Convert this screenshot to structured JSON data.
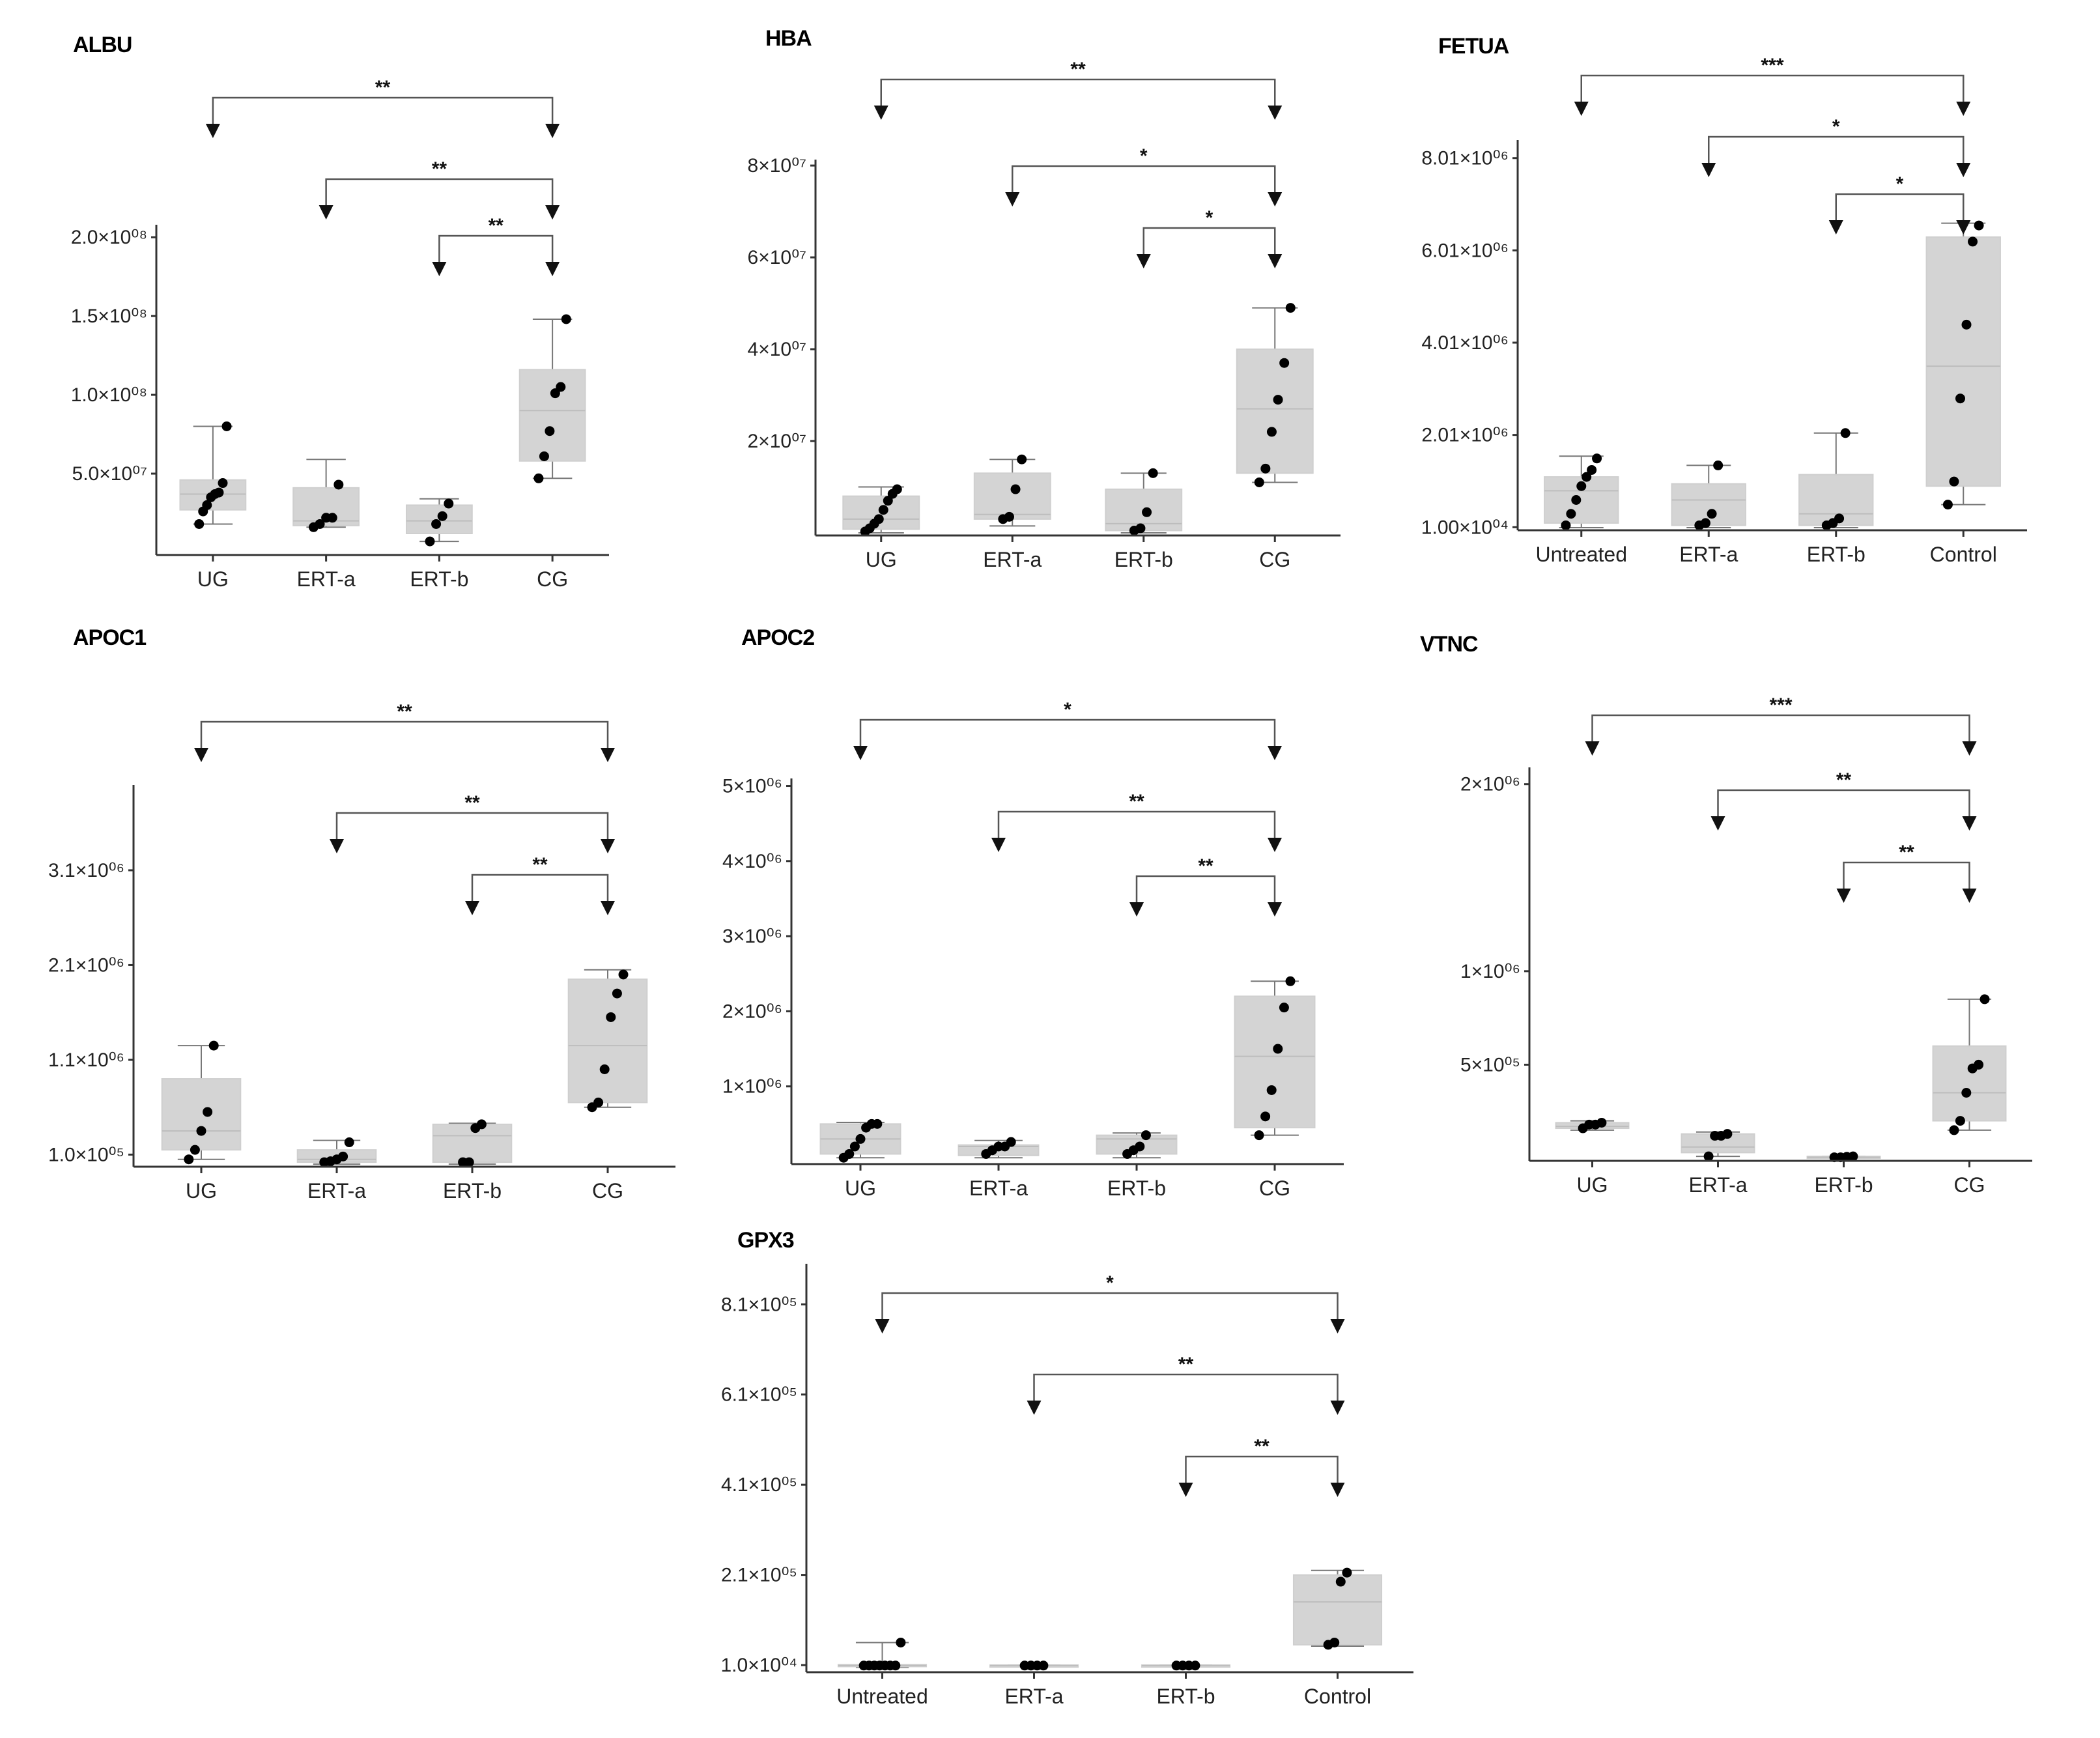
{
  "chart_data": [
    {
      "type": "box",
      "title": "ALBU",
      "categories": [
        "UG",
        "ERT-a",
        "ERT-b",
        "CG"
      ],
      "ylim": [
        0,
        210000000.0
      ],
      "yticks": [
        {
          "value": 50000000.0,
          "label": "5.0×10⁰⁷"
        },
        {
          "value": 100000000.0,
          "label": "1.0×10⁰⁸"
        },
        {
          "value": 150000000.0,
          "label": "1.5×10⁰⁸"
        },
        {
          "value": 200000000.0,
          "label": "2.0×10⁰⁸"
        }
      ],
      "boxes": [
        {
          "whisker_low": 18000000.0,
          "q1": 27000000.0,
          "median": 37000000.0,
          "q3": 46000000.0,
          "whisker_high": 80000000.0,
          "points": [
            18000000.0,
            26000000.0,
            30000000.0,
            35000000.0,
            37000000.0,
            38000000.0,
            44000000.0,
            80000000.0
          ]
        },
        {
          "whisker_low": 16000000.0,
          "q1": 17000000.0,
          "median": 20000000.0,
          "q3": 41000000.0,
          "whisker_high": 59000000.0,
          "points": [
            16000000.0,
            18000000.0,
            22000000.0,
            22000000.0,
            43000000.0
          ]
        },
        {
          "whisker_low": 7000000.0,
          "q1": 12000000.0,
          "median": 20000000.0,
          "q3": 30000000.0,
          "whisker_high": 34000000.0,
          "points": [
            7000000.0,
            18000000.0,
            23000000.0,
            31000000.0
          ]
        },
        {
          "whisker_low": 47000000.0,
          "q1": 58000000.0,
          "median": 90000000.0,
          "q3": 116000000.0,
          "whisker_high": 148000000.0,
          "points": [
            47000000.0,
            61000000.0,
            77000000.0,
            101000000.0,
            105000000.0,
            148000000.0
          ]
        }
      ],
      "comparisons": [
        {
          "from": 0,
          "to": 3,
          "label": "**"
        },
        {
          "from": 1,
          "to": 3,
          "label": "**"
        },
        {
          "from": 2,
          "to": 3,
          "label": "**"
        }
      ]
    },
    {
      "type": "box",
      "title": "HBA",
      "categories": [
        "UG",
        "ERT-a",
        "ERT-b",
        "CG"
      ],
      "ylim": [
        0,
        82000000.0
      ],
      "yticks": [
        {
          "value": 20000000.0,
          "label": "2×10⁰⁷"
        },
        {
          "value": 40000000.0,
          "label": "4×10⁰⁷"
        },
        {
          "value": 60000000.0,
          "label": "6×10⁰⁷"
        },
        {
          "value": 80000000.0,
          "label": "8×10⁰⁷"
        }
      ],
      "boxes": [
        {
          "whisker_low": 0,
          "q1": 800000.0,
          "median": 3000000.0,
          "q3": 8000000.0,
          "whisker_high": 10000000.0,
          "points": [
            300000.0,
            1000000.0,
            2000000.0,
            3000000.0,
            5000000.0,
            7000000.0,
            8500000.0,
            9500000.0
          ]
        },
        {
          "whisker_low": 1500000.0,
          "q1": 3000000.0,
          "median": 4000000.0,
          "q3": 13000000.0,
          "whisker_high": 16000000.0,
          "points": [
            3000000.0,
            3500000.0,
            9500000.0,
            16000000.0
          ]
        },
        {
          "whisker_low": 0,
          "q1": 500000.0,
          "median": 2000000.0,
          "q3": 9500000.0,
          "whisker_high": 13000000.0,
          "points": [
            500000.0,
            1000000.0,
            4500000.0,
            13000000.0
          ]
        },
        {
          "whisker_low": 11000000.0,
          "q1": 13000000.0,
          "median": 27000000.0,
          "q3": 40000000.0,
          "whisker_high": 49000000.0,
          "points": [
            11000000.0,
            14000000.0,
            22000000.0,
            29000000.0,
            37000000.0,
            49000000.0
          ]
        }
      ],
      "comparisons": [
        {
          "from": 0,
          "to": 3,
          "label": "**"
        },
        {
          "from": 1,
          "to": 3,
          "label": "*"
        },
        {
          "from": 2,
          "to": 3,
          "label": "*"
        }
      ]
    },
    {
      "type": "box",
      "title": "FETUA",
      "categories": [
        "Untreated",
        "ERT-a",
        "ERT-b",
        "Control"
      ],
      "ylim": [
        0,
        8500000.0
      ],
      "yticks": [
        {
          "value": 10000.0,
          "label": "1.00×10⁰⁴"
        },
        {
          "value": 2010000.0,
          "label": "2.01×10⁰⁶"
        },
        {
          "value": 4010000.0,
          "label": "4.01×10⁰⁶"
        },
        {
          "value": 6010000.0,
          "label": "6.01×10⁰⁶"
        },
        {
          "value": 8010000.0,
          "label": "8.01×10⁰⁶"
        }
      ],
      "boxes": [
        {
          "whisker_low": 0,
          "q1": 100000.0,
          "median": 800000.0,
          "q3": 1100000.0,
          "whisker_high": 1550000.0,
          "points": [
            50000.0,
            300000.0,
            600000.0,
            900000.0,
            1100000.0,
            1250000.0,
            1500000.0
          ]
        },
        {
          "whisker_low": 0,
          "q1": 50000.0,
          "median": 600000.0,
          "q3": 950000.0,
          "whisker_high": 1350000.0,
          "points": [
            50000.0,
            100000.0,
            300000.0,
            1350000.0
          ]
        },
        {
          "whisker_low": 0,
          "q1": 50000.0,
          "median": 300000.0,
          "q3": 1150000.0,
          "whisker_high": 2050000.0,
          "points": [
            50000.0,
            100000.0,
            200000.0,
            2050000.0
          ]
        },
        {
          "whisker_low": 500000.0,
          "q1": 900000.0,
          "median": 3500000.0,
          "q3": 6300000.0,
          "whisker_high": 6600000.0,
          "points": [
            500000.0,
            1000000.0,
            2800000.0,
            4400000.0,
            6200000.0,
            6550000.0
          ]
        }
      ],
      "comparisons": [
        {
          "from": 0,
          "to": 3,
          "label": "***"
        },
        {
          "from": 1,
          "to": 3,
          "label": "*"
        },
        {
          "from": 2,
          "to": 3,
          "label": "*"
        }
      ]
    },
    {
      "type": "box",
      "title": "APOC1",
      "categories": [
        "UG",
        "ERT-a",
        "ERT-b",
        "CG"
      ],
      "ylim": [
        0,
        4000000.0
      ],
      "yticks": [
        {
          "value": 100000.0,
          "label": "1.0×10⁰⁵"
        },
        {
          "value": 1100000.0,
          "label": "1.1×10⁰⁶"
        },
        {
          "value": 2100000.0,
          "label": "2.1×10⁰⁶"
        },
        {
          "value": 3100000.0,
          "label": "3.1×10⁰⁶"
        }
      ],
      "boxes": [
        {
          "whisker_low": 50000.0,
          "q1": 150000.0,
          "median": 350000.0,
          "q3": 900000.0,
          "whisker_high": 1250000.0,
          "points": [
            50000.0,
            150000.0,
            350000.0,
            550000.0,
            1250000.0
          ]
        },
        {
          "whisker_low": 0,
          "q1": 20000.0,
          "median": 50000.0,
          "q3": 150000.0,
          "whisker_high": 250000.0,
          "points": [
            20000.0,
            30000.0,
            50000.0,
            80000.0,
            230000.0
          ]
        },
        {
          "whisker_low": 0,
          "q1": 20000.0,
          "median": 300000.0,
          "q3": 420000.0,
          "whisker_high": 430000.0,
          "points": [
            20000.0,
            20000.0,
            380000.0,
            420000.0
          ]
        },
        {
          "whisker_low": 600000.0,
          "q1": 650000.0,
          "median": 1250000.0,
          "q3": 1950000.0,
          "whisker_high": 2050000.0,
          "points": [
            600000.0,
            650000.0,
            1000000.0,
            1550000.0,
            1800000.0,
            2000000.0
          ]
        }
      ],
      "comparisons": [
        {
          "from": 0,
          "to": 3,
          "label": "**"
        },
        {
          "from": 1,
          "to": 3,
          "label": "**"
        },
        {
          "from": 2,
          "to": 3,
          "label": "**"
        }
      ]
    },
    {
      "type": "box",
      "title": "APOC2",
      "categories": [
        "UG",
        "ERT-a",
        "ERT-b",
        "CG"
      ],
      "ylim": [
        0,
        5100000.0
      ],
      "yticks": [
        {
          "value": 1000000.0,
          "label": "1×10⁰⁶"
        },
        {
          "value": 2000000.0,
          "label": "2×10⁰⁶"
        },
        {
          "value": 3000000.0,
          "label": "3×10⁰⁶"
        },
        {
          "value": 4000000.0,
          "label": "4×10⁰⁶"
        },
        {
          "value": 5000000.0,
          "label": "5×10⁰⁶"
        }
      ],
      "boxes": [
        {
          "whisker_low": 50000.0,
          "q1": 100000.0,
          "median": 300000.0,
          "q3": 500000.0,
          "whisker_high": 520000.0,
          "points": [
            50000.0,
            100000.0,
            200000.0,
            300000.0,
            450000.0,
            500000.0,
            500000.0
          ]
        },
        {
          "whisker_low": 50000.0,
          "q1": 80000.0,
          "median": 200000.0,
          "q3": 220000.0,
          "whisker_high": 280000.0,
          "points": [
            100000.0,
            150000.0,
            200000.0,
            200000.0,
            260000.0
          ]
        },
        {
          "whisker_low": 50000.0,
          "q1": 100000.0,
          "median": 300000.0,
          "q3": 350000.0,
          "whisker_high": 380000.0,
          "points": [
            100000.0,
            150000.0,
            200000.0,
            350000.0
          ]
        },
        {
          "whisker_low": 350000.0,
          "q1": 450000.0,
          "median": 1400000.0,
          "q3": 2200000.0,
          "whisker_high": 2400000.0,
          "points": [
            350000.0,
            600000.0,
            950000.0,
            1500000.0,
            2050000.0,
            2400000.0
          ]
        }
      ],
      "comparisons": [
        {
          "from": 0,
          "to": 3,
          "label": "*"
        },
        {
          "from": 1,
          "to": 3,
          "label": "**"
        },
        {
          "from": 2,
          "to": 3,
          "label": "**"
        }
      ]
    },
    {
      "type": "box",
      "title": "VTNC",
      "categories": [
        "UG",
        "ERT-a",
        "ERT-b",
        "CG"
      ],
      "ylim": [
        0,
        2100000.0
      ],
      "yticks": [
        {
          "value": 500000.0,
          "label": "5×10⁰⁵"
        },
        {
          "value": 1000000.0,
          "label": "1×10⁰⁶"
        },
        {
          "value": 2000000.0,
          "label": "2×10⁰⁶"
        }
      ],
      "boxes": [
        {
          "whisker_low": 150000.0,
          "q1": 160000.0,
          "median": 170000.0,
          "q3": 190000.0,
          "whisker_high": 200000.0,
          "points": [
            160000.0,
            180000.0,
            180000.0,
            190000.0
          ]
        },
        {
          "whisker_low": 10000.0,
          "q1": 30000.0,
          "median": 60000.0,
          "q3": 130000.0,
          "whisker_high": 140000.0,
          "points": [
            10000.0,
            120000.0,
            120000.0,
            130000.0
          ]
        },
        {
          "whisker_low": 0,
          "q1": 2000.0,
          "median": 5000.0,
          "q3": 10000.0,
          "whisker_high": 10000.0,
          "points": [
            5000.0,
            5000.0,
            8000.0,
            10000.0
          ]
        },
        {
          "whisker_low": 150000.0,
          "q1": 200000.0,
          "median": 350000.0,
          "q3": 600000.0,
          "whisker_high": 850000.0,
          "points": [
            150000.0,
            200000.0,
            350000.0,
            480000.0,
            500000.0,
            850000.0
          ]
        }
      ],
      "comparisons": [
        {
          "from": 0,
          "to": 3,
          "label": "***"
        },
        {
          "from": 1,
          "to": 3,
          "label": "**"
        },
        {
          "from": 2,
          "to": 3,
          "label": "**"
        }
      ]
    },
    {
      "type": "box",
      "title": "GPX3",
      "categories": [
        "Untreated",
        "ERT-a",
        "ERT-b",
        "Control"
      ],
      "ylim": [
        0,
        900000.0
      ],
      "yticks": [
        {
          "value": 10000.0,
          "label": "1.0×10⁰⁴"
        },
        {
          "value": 210000.0,
          "label": "2.1×10⁰⁵"
        },
        {
          "value": 410000.0,
          "label": "4.1×10⁰⁵"
        },
        {
          "value": 610000.0,
          "label": "6.1×10⁰⁵"
        },
        {
          "value": 810000.0,
          "label": "8.1×10⁰⁵"
        }
      ],
      "boxes": [
        {
          "whisker_low": 5000.0,
          "q1": 7000.0,
          "median": 9000.0,
          "q3": 11000.0,
          "whisker_high": 60000.0,
          "points": [
            9000.0,
            9000.0,
            9000.0,
            9000.0,
            9000.0,
            9000.0,
            9000.0,
            60000.0
          ]
        },
        {
          "whisker_low": 8000.0,
          "q1": 9000.0,
          "median": 9000.0,
          "q3": 10000.0,
          "whisker_high": 10000.0,
          "points": [
            9000.0,
            9000.0,
            9000.0,
            9000.0
          ]
        },
        {
          "whisker_low": 8000.0,
          "q1": 9000.0,
          "median": 9000.0,
          "q3": 10000.0,
          "whisker_high": 10000.0,
          "points": [
            9000.0,
            9000.0,
            9000.0,
            9000.0
          ]
        },
        {
          "whisker_low": 52000.0,
          "q1": 55000.0,
          "median": 150000.0,
          "q3": 210000.0,
          "whisker_high": 220000.0,
          "points": [
            55000.0,
            60000.0,
            195000.0,
            215000.0
          ]
        }
      ],
      "comparisons": [
        {
          "from": 0,
          "to": 3,
          "label": "*"
        },
        {
          "from": 1,
          "to": 3,
          "label": "**"
        },
        {
          "from": 2,
          "to": 3,
          "label": "**"
        }
      ]
    }
  ]
}
